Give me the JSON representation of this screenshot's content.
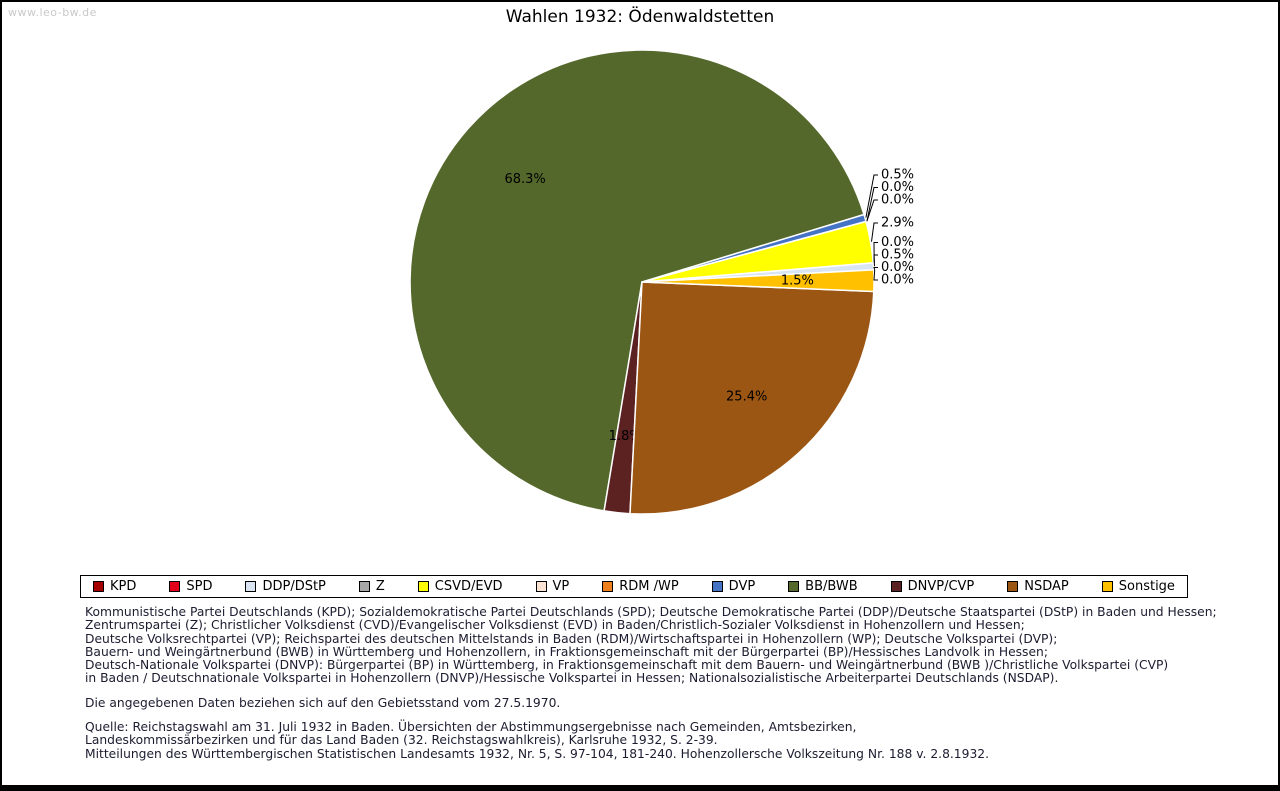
{
  "page": {
    "watermark": "www.leo-bw.de",
    "title": "Wahlen 1932: Ödenwaldstetten"
  },
  "chart_data": {
    "type": "pie",
    "title": "Wahlen 1932: Ödenwaldstetten",
    "start_angle_deg": 3,
    "direction": "counterclockwise",
    "legend_position": "bottom",
    "slices": [
      {
        "label": "KPD",
        "value": 0.0,
        "color": "#A40000",
        "callout": true
      },
      {
        "label": "SPD",
        "value": 0.0,
        "color": "#E2001A",
        "callout": true
      },
      {
        "label": "DDP/DStP",
        "value": 0.5,
        "color": "#D9E5F3",
        "callout": true
      },
      {
        "label": "Z",
        "value": 0.0,
        "color": "#A8A8A8",
        "callout": true
      },
      {
        "label": "CSVD/EVD",
        "value": 2.9,
        "color": "#FFFF00",
        "callout": true
      },
      {
        "label": "VP",
        "value": 0.0,
        "color": "#FAE3D3",
        "callout": true
      },
      {
        "label": "RDM /WP",
        "value": 0.0,
        "color": "#EE7F1D",
        "callout": true
      },
      {
        "label": "DVP",
        "value": 0.5,
        "color": "#4472C4",
        "callout": true
      },
      {
        "label": "BB/BWB",
        "value": 68.3,
        "color": "#55682C",
        "callout": false
      },
      {
        "label": "DNVP/CVP",
        "value": 1.8,
        "color": "#5C2222",
        "callout": false
      },
      {
        "label": "NSDAP",
        "value": 25.4,
        "color": "#9C5614",
        "callout": false
      },
      {
        "label": "Sonstige",
        "value": 1.5,
        "color": "#FFC000",
        "callout": false
      }
    ]
  },
  "footer": {
    "party_description_lines": [
      "Kommunistische Partei Deutschlands (KPD); Sozialdemokratische Partei Deutschlands (SPD); Deutsche Demokratische Partei (DDP)/Deutsche Staatspartei (DStP) in Baden und Hessen;",
      "Zentrumspartei (Z); Christlicher Volksdienst (CVD)/Evangelischer Volksdienst (EVD) in Baden/Christlich-Sozialer Volksdienst in Hohenzollern und Hessen;",
      "Deutsche Volksrechtpartei (VP); Reichspartei des deutschen Mittelstands in Baden (RDM)/Wirtschaftspartei in Hohenzollern (WP); Deutsche Volkspartei (DVP);",
      "Bauern- und Weingärtnerbund (BWB) in Württemberg und Hohenzollern, in Fraktionsgemeinschaft mit der Bürgerpartei (BP)/Hessisches Landvolk in Hessen;",
      "Deutsch-Nationale Volkspartei (DNVP): Bürgerpartei (BP) in Württemberg, in Fraktionsgemeinschaft mit dem Bauern- und Weingärtnerbund (BWB )/Christliche Volkspartei (CVP)",
      "in Baden / Deutschnationale Volkspartei in Hohenzollern (DNVP)/Hessische Volkspartei in Hessen; Nationalsozialistische Arbeiterpartei Deutschlands (NSDAP)."
    ],
    "territory_note": "Die angegebenen Daten beziehen sich auf den Gebietsstand vom 27.5.1970.",
    "source_lines": [
      "Quelle: Reichstagswahl am 31. Juli 1932 in Baden. Übersichten der Abstimmungsergebnisse nach Gemeinden, Amtsbezirken,",
      "Landeskommissärbezirken und für das Land Baden (32. Reichstagswahlkreis), Karlsruhe 1932, S. 2-39.",
      "Mitteilungen des Württembergischen Statistischen Landesamts 1932, Nr. 5, S. 97-104, 181-240. Hohenzollersche Volkszeitung Nr. 188 v. 2.8.1932."
    ]
  }
}
